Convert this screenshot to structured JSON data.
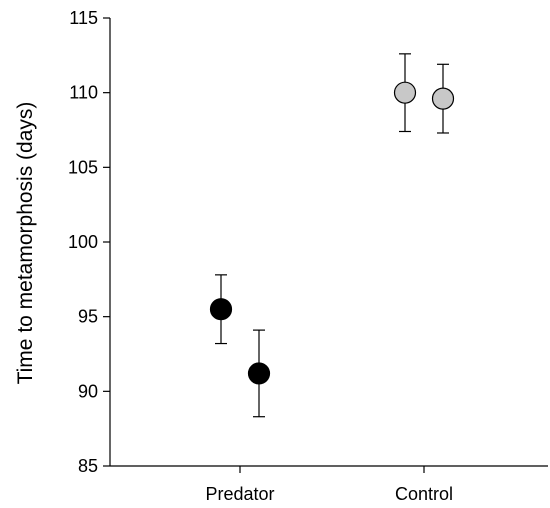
{
  "chart_data": {
    "type": "scatter",
    "title": "",
    "xlabel": "",
    "ylabel": "Time to metamorphosis (days)",
    "ylim": [
      85,
      115
    ],
    "yticks": [
      85,
      90,
      95,
      100,
      105,
      110,
      115
    ],
    "categories": [
      "Predator",
      "Control"
    ],
    "grid": false,
    "legend": "none",
    "colors": {
      "predator": "#000000",
      "control": "#c8c8c8"
    },
    "points": [
      {
        "category": "Predator",
        "offset": -1,
        "y": 95.5,
        "err_low": 93.2,
        "err_high": 97.8,
        "color": "#000000"
      },
      {
        "category": "Predator",
        "offset": 1,
        "y": 91.2,
        "err_low": 88.3,
        "err_high": 94.1,
        "color": "#000000"
      },
      {
        "category": "Control",
        "offset": -1,
        "y": 110.0,
        "err_low": 107.4,
        "err_high": 112.6,
        "color": "#c8c8c8"
      },
      {
        "category": "Control",
        "offset": 1,
        "y": 109.6,
        "err_low": 107.3,
        "err_high": 111.9,
        "color": "#c8c8c8"
      }
    ]
  }
}
